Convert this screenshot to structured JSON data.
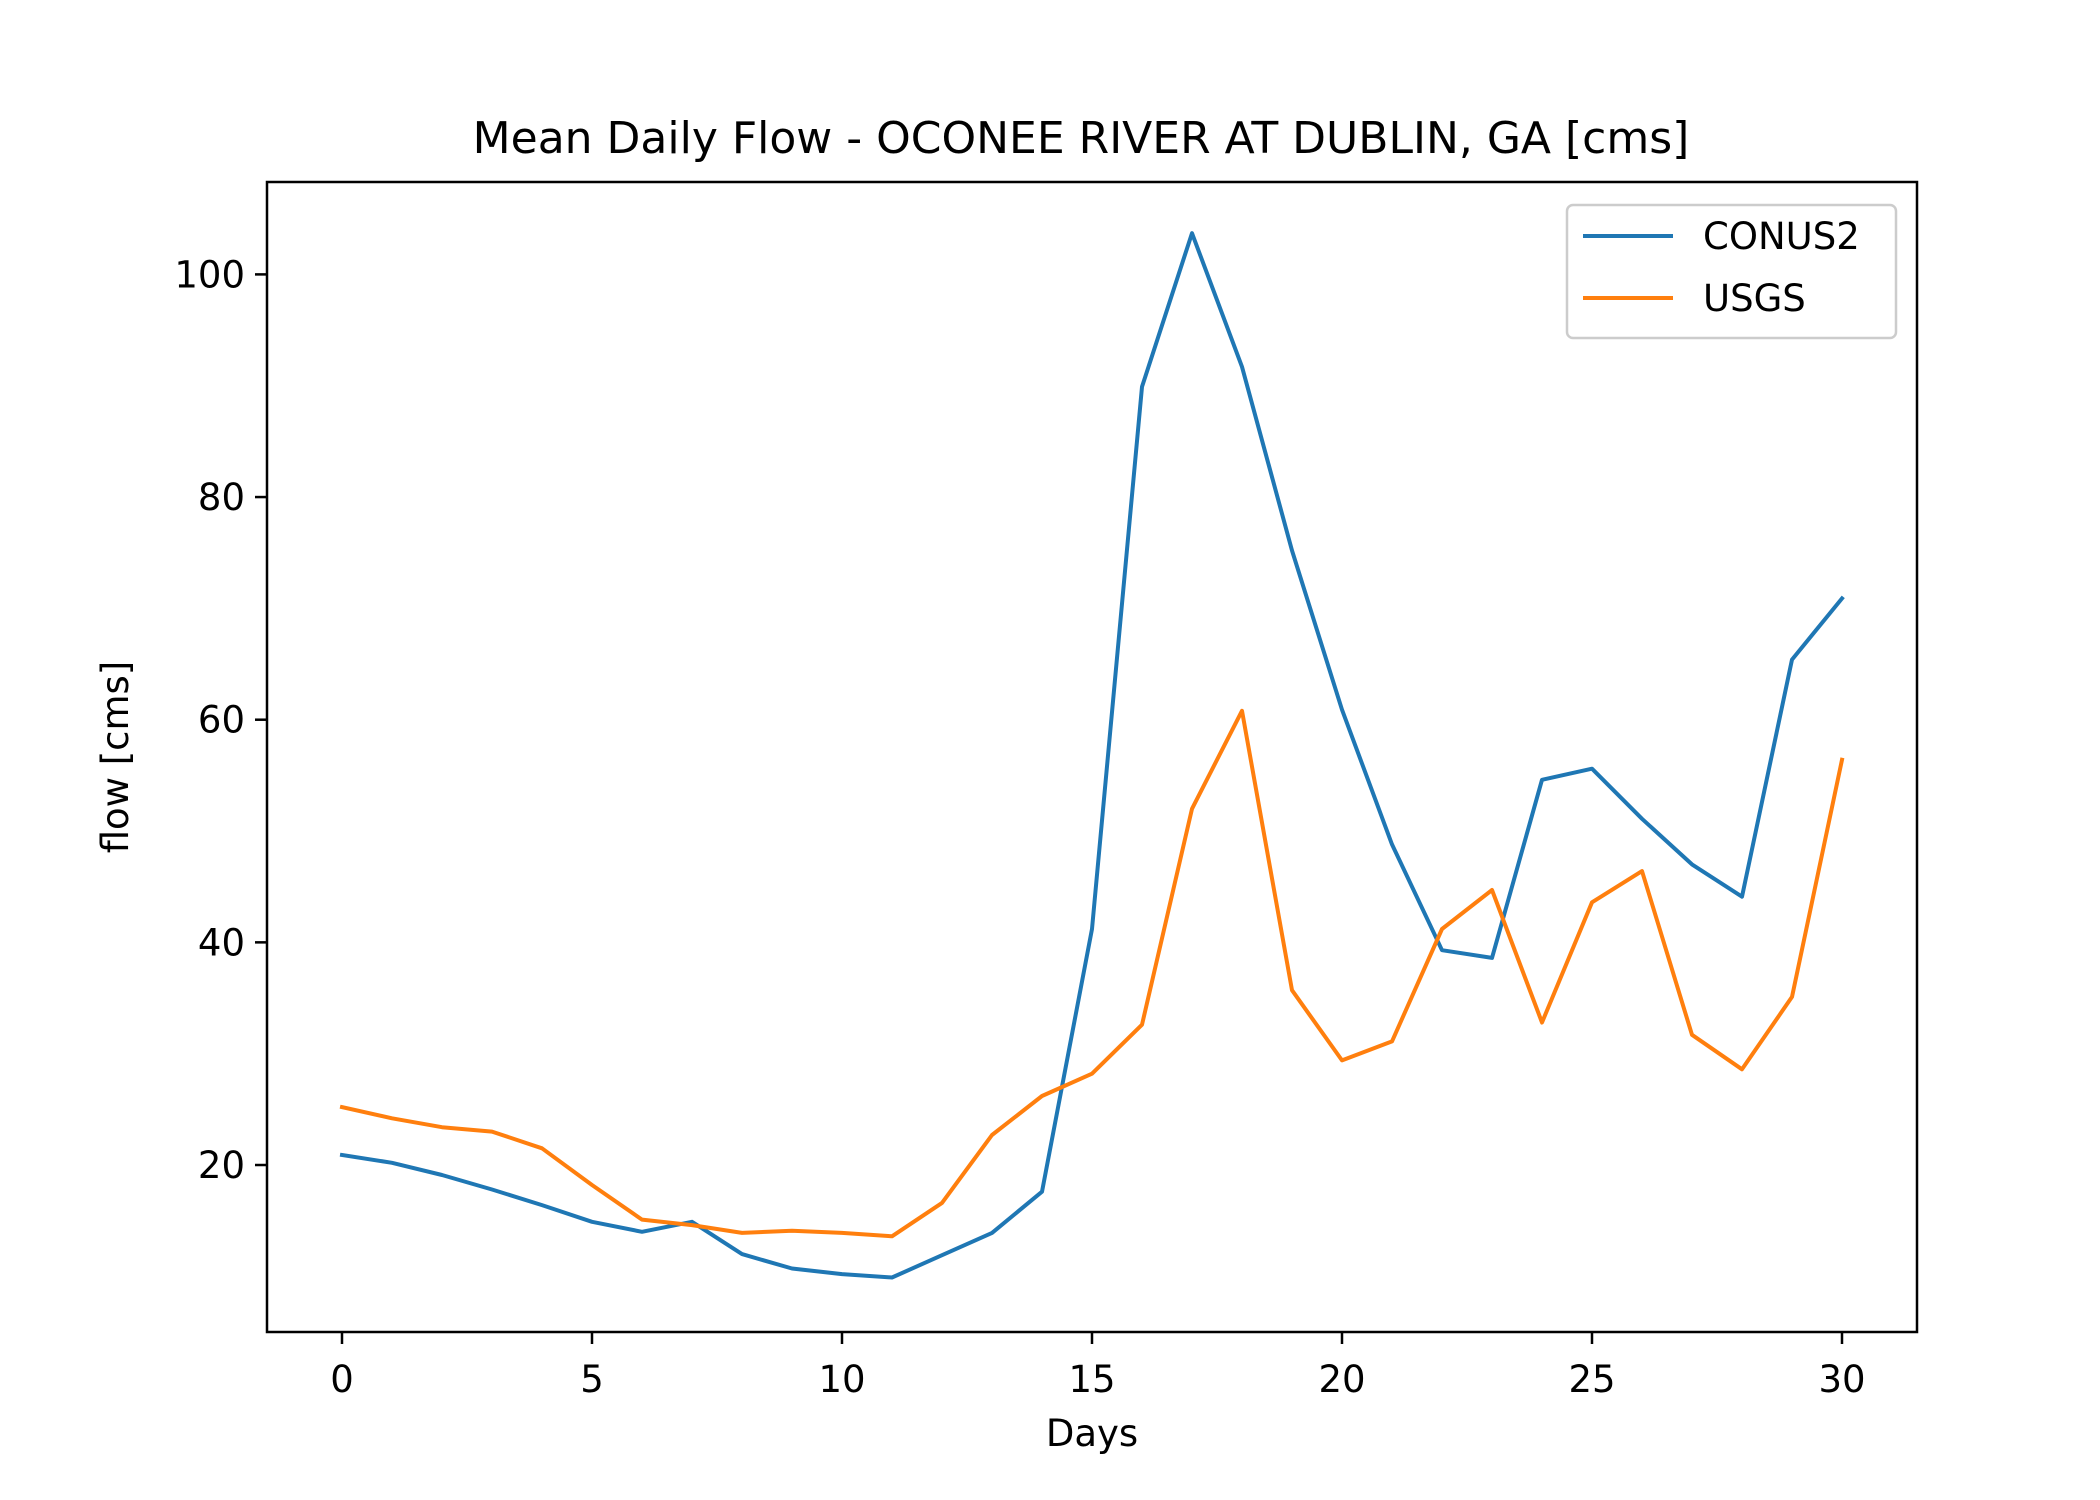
{
  "chart_data": {
    "type": "line",
    "title": "Mean Daily Flow - OCONEE RIVER AT DUBLIN, GA [cms]",
    "xlabel": "Days",
    "ylabel": "flow [cms]",
    "xlim": [
      -1.5,
      31.5
    ],
    "ylim": [
      5.0,
      108.3
    ],
    "xticks": [
      0,
      5,
      10,
      15,
      20,
      25,
      30
    ],
    "yticks": [
      20,
      40,
      60,
      80,
      100
    ],
    "grid": false,
    "legend_position": "top-right",
    "x": [
      0,
      1,
      2,
      3,
      4,
      5,
      6,
      7,
      8,
      9,
      10,
      11,
      12,
      13,
      14,
      15,
      16,
      17,
      18,
      19,
      20,
      21,
      22,
      23,
      24,
      25,
      26,
      27,
      28,
      29,
      30
    ],
    "series": [
      {
        "name": "CONUS2",
        "color": "#1f77b4",
        "values": [
          20.9,
          20.2,
          19.1,
          17.8,
          16.4,
          14.9,
          14.0,
          14.9,
          12.0,
          10.7,
          10.2,
          9.9,
          11.9,
          13.9,
          17.6,
          41.2,
          89.9,
          103.7,
          91.7,
          75.2,
          60.9,
          48.8,
          39.3,
          38.6,
          54.6,
          55.6,
          51.1,
          47.0,
          44.1,
          65.4,
          70.9
        ]
      },
      {
        "name": "USGS",
        "color": "#ff7f0e",
        "values": [
          25.2,
          24.2,
          23.4,
          23.0,
          21.5,
          18.2,
          15.1,
          14.6,
          13.9,
          14.1,
          13.9,
          13.6,
          16.6,
          22.7,
          26.2,
          28.2,
          32.6,
          52.0,
          60.8,
          35.7,
          29.4,
          31.1,
          41.2,
          44.7,
          32.8,
          43.6,
          46.4,
          31.7,
          28.6,
          35.1,
          56.4
        ]
      }
    ]
  }
}
